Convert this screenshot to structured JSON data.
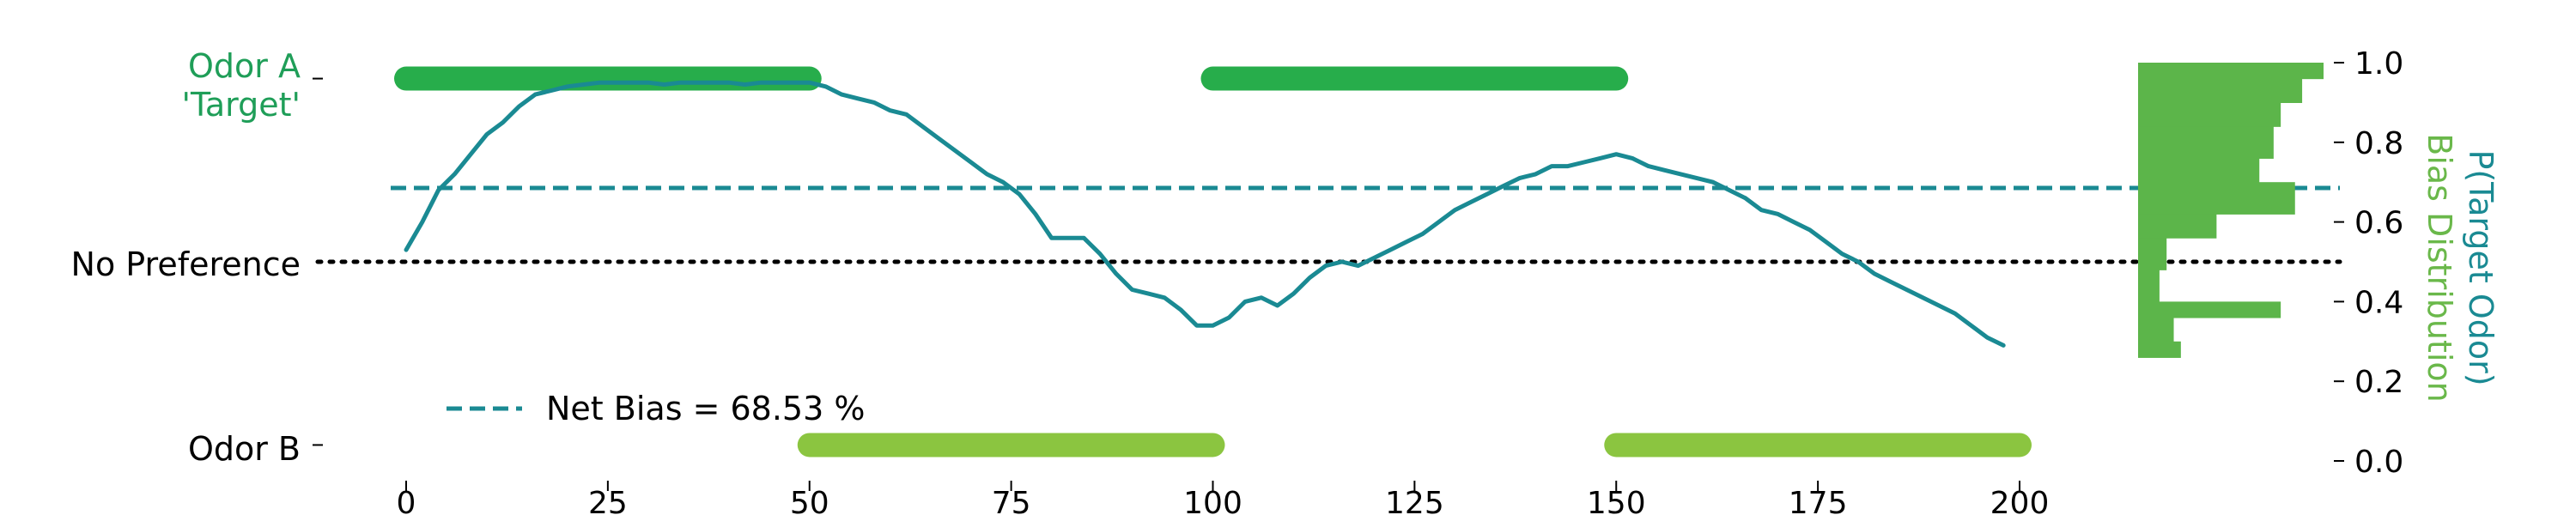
{
  "chart_data": {
    "type": "line",
    "x_ticks": [
      "0",
      "25",
      "50",
      "75",
      "100",
      "125",
      "150",
      "175",
      "200"
    ],
    "y2_ticks": [
      "0.0",
      "0.2",
      "0.4",
      "0.6",
      "0.8",
      "1.0"
    ],
    "y_category_labels": {
      "odor_a_line1": "Odor A",
      "odor_a_line2": "'Target'",
      "no_preference": "No Preference",
      "odor_b": "Odor B"
    },
    "y2_label_line1": "P(Target Odor)",
    "y2_label_line2": "Bias Distribution",
    "legend": {
      "net_bias_label": "Net Bias = 68.53 %",
      "position": "lower-left"
    },
    "xlim": [
      -3,
      203
    ],
    "ylim": [
      0,
      1
    ],
    "net_bias": 0.6853,
    "no_preference": 0.5,
    "odor_a_level": 0.96,
    "odor_b_level": 0.04,
    "odor_a_segments": [
      [
        0,
        50
      ],
      [
        100,
        150
      ]
    ],
    "odor_b_segments": [
      [
        50,
        100
      ],
      [
        150,
        200
      ]
    ],
    "series": [
      {
        "name": "P(Target Odor)",
        "x": [
          0,
          2,
          4,
          6,
          8,
          10,
          12,
          14,
          16,
          18,
          20,
          22,
          24,
          26,
          28,
          30,
          32,
          34,
          36,
          38,
          40,
          42,
          44,
          46,
          48,
          50,
          52,
          54,
          56,
          58,
          60,
          62,
          64,
          66,
          68,
          70,
          72,
          74,
          76,
          78,
          80,
          82,
          84,
          86,
          88,
          90,
          92,
          94,
          96,
          98,
          100,
          102,
          104,
          106,
          108,
          110,
          112,
          114,
          116,
          118,
          120,
          122,
          124,
          126,
          128,
          130,
          132,
          134,
          136,
          138,
          140,
          142,
          144,
          146,
          148,
          150,
          152,
          154,
          156,
          158,
          160,
          162,
          164,
          166,
          168,
          170,
          172,
          174,
          176,
          178,
          180,
          182,
          184,
          186,
          188,
          190,
          192,
          194,
          196,
          198
        ],
        "y": [
          0.53,
          0.6,
          0.68,
          0.72,
          0.77,
          0.82,
          0.85,
          0.89,
          0.92,
          0.93,
          0.94,
          0.945,
          0.95,
          0.95,
          0.95,
          0.95,
          0.945,
          0.95,
          0.95,
          0.95,
          0.95,
          0.945,
          0.95,
          0.95,
          0.95,
          0.95,
          0.94,
          0.92,
          0.91,
          0.9,
          0.88,
          0.87,
          0.84,
          0.81,
          0.78,
          0.75,
          0.72,
          0.7,
          0.67,
          0.62,
          0.56,
          0.56,
          0.56,
          0.52,
          0.47,
          0.43,
          0.42,
          0.41,
          0.38,
          0.34,
          0.34,
          0.36,
          0.4,
          0.41,
          0.39,
          0.42,
          0.46,
          0.49,
          0.5,
          0.49,
          0.51,
          0.53,
          0.55,
          0.57,
          0.6,
          0.63,
          0.65,
          0.67,
          0.69,
          0.71,
          0.72,
          0.74,
          0.74,
          0.75,
          0.76,
          0.77,
          0.76,
          0.74,
          0.73,
          0.72,
          0.71,
          0.7,
          0.68,
          0.66,
          0.63,
          0.62,
          0.6,
          0.58,
          0.55,
          0.52,
          0.5,
          0.47,
          0.45,
          0.43,
          0.41,
          0.39,
          0.37,
          0.34,
          0.31,
          0.29
        ],
        "color": "#1a8a93"
      }
    ],
    "histogram": {
      "bins": [
        {
          "lo": 0.26,
          "hi": 0.3,
          "count": 6
        },
        {
          "lo": 0.3,
          "hi": 0.36,
          "count": 5
        },
        {
          "lo": 0.36,
          "hi": 0.4,
          "count": 20
        },
        {
          "lo": 0.4,
          "hi": 0.48,
          "count": 3
        },
        {
          "lo": 0.48,
          "hi": 0.56,
          "count": 4
        },
        {
          "lo": 0.56,
          "hi": 0.62,
          "count": 11
        },
        {
          "lo": 0.62,
          "hi": 0.7,
          "count": 22
        },
        {
          "lo": 0.7,
          "hi": 0.76,
          "count": 17
        },
        {
          "lo": 0.76,
          "hi": 0.84,
          "count": 19
        },
        {
          "lo": 0.84,
          "hi": 0.9,
          "count": 20
        },
        {
          "lo": 0.9,
          "hi": 0.96,
          "count": 23
        },
        {
          "lo": 0.96,
          "hi": 1.0,
          "count": 26
        }
      ],
      "max_count": 26,
      "color": "#5cb54a"
    },
    "colors": {
      "odor_a": "#27ad4b",
      "odor_b": "#8bc540",
      "line": "#1a8a93",
      "odor_a_text": "#1f9e58",
      "y2_label_top": "#1a8a93",
      "y2_label_bottom": "#6ab84a",
      "no_pref_line": "#000000"
    }
  }
}
